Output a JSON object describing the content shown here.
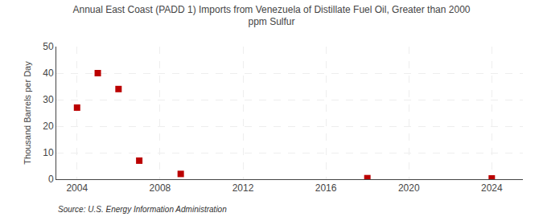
{
  "chart_data": {
    "type": "scatter",
    "title": "Annual East Coast (PADD 1) Imports from Venezuela of Distillate Fuel Oil, Greater than 2000\nppm Sulfur",
    "ylabel": "Thousand Barrels per Day",
    "annotations": [
      "Source: U.S. Energy Information Administration"
    ],
    "x": [
      2004,
      2005,
      2006,
      2007,
      2009,
      2018,
      2024
    ],
    "values": [
      27,
      40,
      34,
      7,
      2,
      0.4,
      0.3
    ],
    "color": "#bb0000",
    "marker": "square",
    "xlim": [
      2003,
      2025.5
    ],
    "ylim": [
      0,
      50
    ],
    "xticks": [
      2004,
      2008,
      2012,
      2016,
      2020,
      2024
    ],
    "yticks": [
      0,
      10,
      20,
      30,
      40,
      50
    ],
    "grid": true
  }
}
